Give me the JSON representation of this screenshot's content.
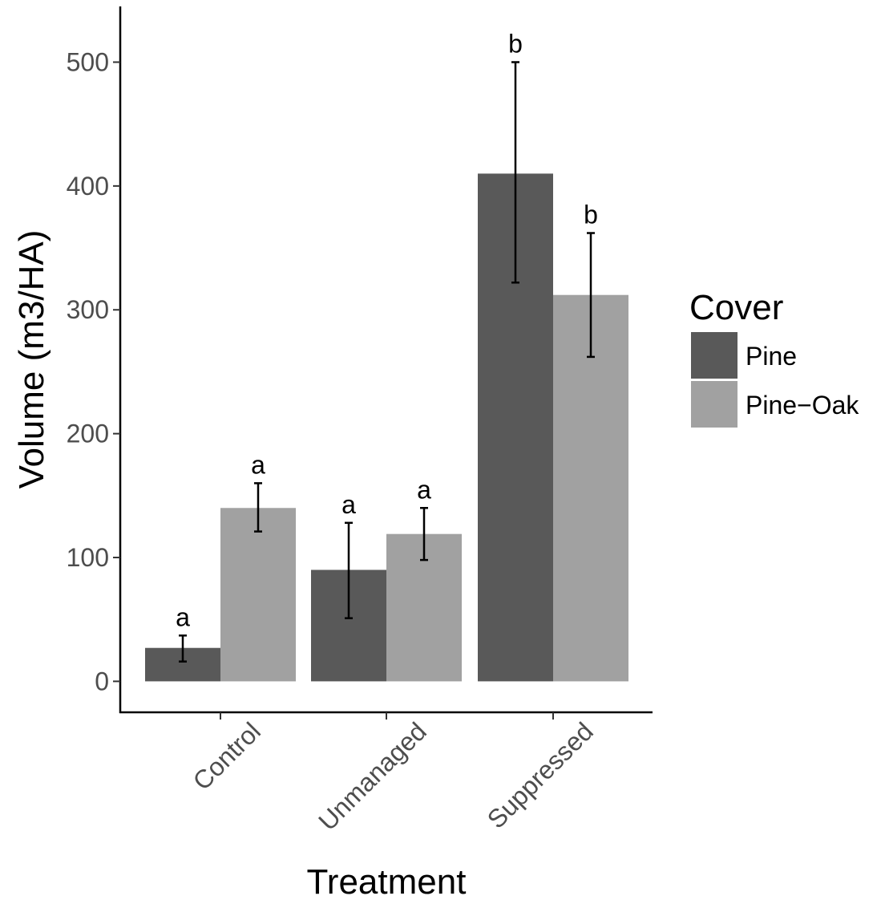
{
  "chart_data": {
    "type": "bar",
    "xlabel": "Treatment",
    "ylabel": "Volume (m3/HA)",
    "categories": [
      "Control",
      "Unmanaged",
      "Suppressed"
    ],
    "ylim": [
      -25,
      545
    ],
    "yticks": [
      0,
      100,
      200,
      300,
      400,
      500
    ],
    "grid": false,
    "legend": {
      "title": "Cover",
      "position": "right",
      "entries": [
        {
          "label": "Pine",
          "color": "#595959"
        },
        {
          "label": "Pine−Oak",
          "color": "#a1a1a1"
        }
      ]
    },
    "series": [
      {
        "name": "Pine",
        "color": "#595959",
        "values": [
          27,
          90,
          410
        ],
        "error_low": [
          16,
          51,
          322
        ],
        "error_high": [
          37,
          128,
          500
        ],
        "labels": [
          "a",
          "a",
          "b"
        ]
      },
      {
        "name": "Pine−Oak",
        "color": "#a1a1a1",
        "values": [
          140,
          119,
          312
        ],
        "error_low": [
          121,
          98,
          262
        ],
        "error_high": [
          160,
          140,
          362
        ],
        "labels": [
          "a",
          "a",
          "b"
        ]
      }
    ]
  }
}
